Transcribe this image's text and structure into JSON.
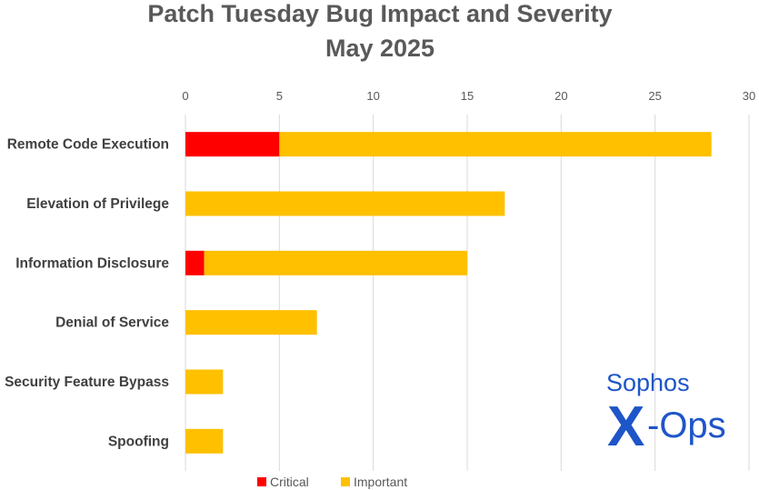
{
  "chart_data": {
    "type": "bar",
    "orientation": "horizontal",
    "stacked": true,
    "title": [
      "Patch Tuesday Bug Impact and Severity",
      "May 2025"
    ],
    "categories": [
      "Remote Code Execution",
      "Elevation of Privilege",
      "Information Disclosure",
      "Denial of Service",
      "Security Feature Bypass",
      "Spoofing"
    ],
    "series": [
      {
        "name": "Critical",
        "color": "#ff0000",
        "values": [
          5,
          0,
          1,
          0,
          0,
          0
        ]
      },
      {
        "name": "Important",
        "color": "#ffc000",
        "values": [
          23,
          17,
          14,
          7,
          2,
          2
        ]
      }
    ],
    "xlim": [
      0,
      30
    ],
    "xticks": [
      0,
      5,
      10,
      15,
      20,
      25,
      30
    ],
    "x_axis_position": "top",
    "grid": true,
    "legend": "bottom"
  },
  "watermark": {
    "brand": "Sophos",
    "product_x": "X",
    "product_rest": "-Ops",
    "color": "#1e55c8"
  }
}
